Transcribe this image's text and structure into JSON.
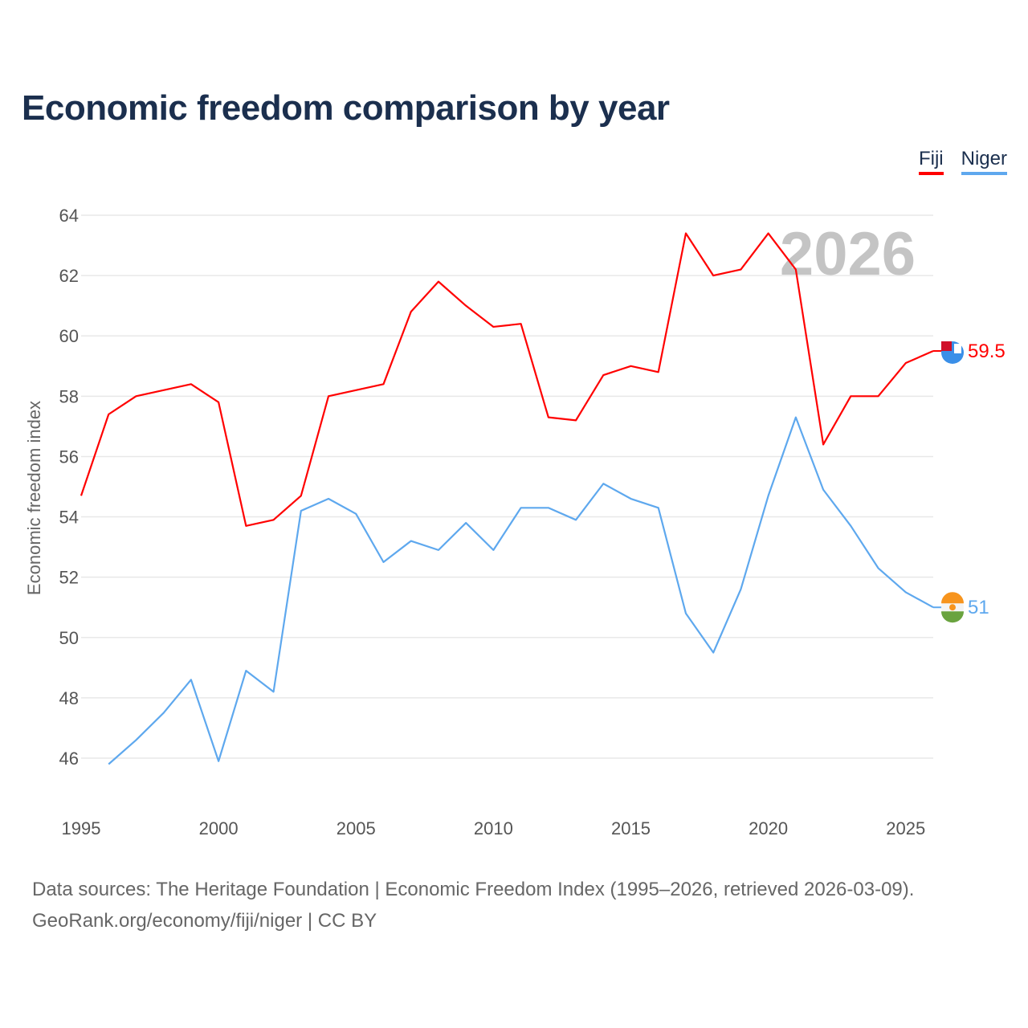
{
  "chart_data": {
    "type": "line",
    "title": "Economic freedom comparison by year",
    "xlabel": "",
    "ylabel": "Economic freedom index",
    "xlim": [
      1995,
      2026
    ],
    "ylim": [
      44.5,
      64
    ],
    "x_ticks": [
      "1995",
      "2000",
      "2005",
      "2010",
      "2015",
      "2020",
      "2025"
    ],
    "y_ticks": [
      "46",
      "48",
      "50",
      "52",
      "54",
      "56",
      "58",
      "60",
      "62",
      "64"
    ],
    "year_watermark": "2026",
    "legend_position": "top-right",
    "series": [
      {
        "name": "Fiji",
        "color": "#ff0000",
        "end_label": "59.5",
        "x": [
          1995,
          1996,
          1997,
          1998,
          1999,
          2000,
          2001,
          2002,
          2003,
          2004,
          2005,
          2006,
          2007,
          2008,
          2009,
          2010,
          2011,
          2012,
          2013,
          2014,
          2015,
          2016,
          2017,
          2018,
          2019,
          2020,
          2021,
          2022,
          2023,
          2024,
          2025,
          2026
        ],
        "values": [
          54.7,
          57.4,
          58.0,
          58.2,
          58.4,
          57.8,
          53.7,
          53.9,
          54.7,
          58.0,
          58.2,
          58.4,
          60.8,
          61.8,
          61.0,
          60.3,
          60.4,
          57.3,
          57.2,
          58.7,
          59.0,
          58.8,
          63.4,
          62.0,
          62.2,
          63.4,
          62.2,
          56.4,
          58.0,
          58.0,
          59.1,
          59.5
        ]
      },
      {
        "name": "Niger",
        "color": "#5ea8ee",
        "end_label": "51",
        "x": [
          1996,
          1997,
          1998,
          1999,
          2000,
          2001,
          2002,
          2003,
          2004,
          2005,
          2006,
          2007,
          2008,
          2009,
          2010,
          2011,
          2012,
          2013,
          2014,
          2015,
          2016,
          2017,
          2018,
          2019,
          2020,
          2021,
          2022,
          2023,
          2024,
          2025,
          2026
        ],
        "values": [
          45.8,
          46.6,
          47.5,
          48.6,
          45.9,
          48.9,
          48.2,
          54.2,
          54.6,
          54.1,
          52.5,
          53.2,
          52.9,
          53.8,
          52.9,
          54.3,
          54.3,
          53.9,
          55.1,
          54.6,
          54.3,
          50.8,
          49.5,
          51.6,
          54.7,
          57.3,
          54.9,
          53.7,
          52.3,
          51.5,
          51.0
        ]
      }
    ]
  },
  "source": {
    "line1": "Data sources: The Heritage Foundation | Economic Freedom Index (1995–2026, retrieved 2026-03-09).",
    "line2": "GeoRank.org/economy/fiji/niger | CC BY"
  }
}
